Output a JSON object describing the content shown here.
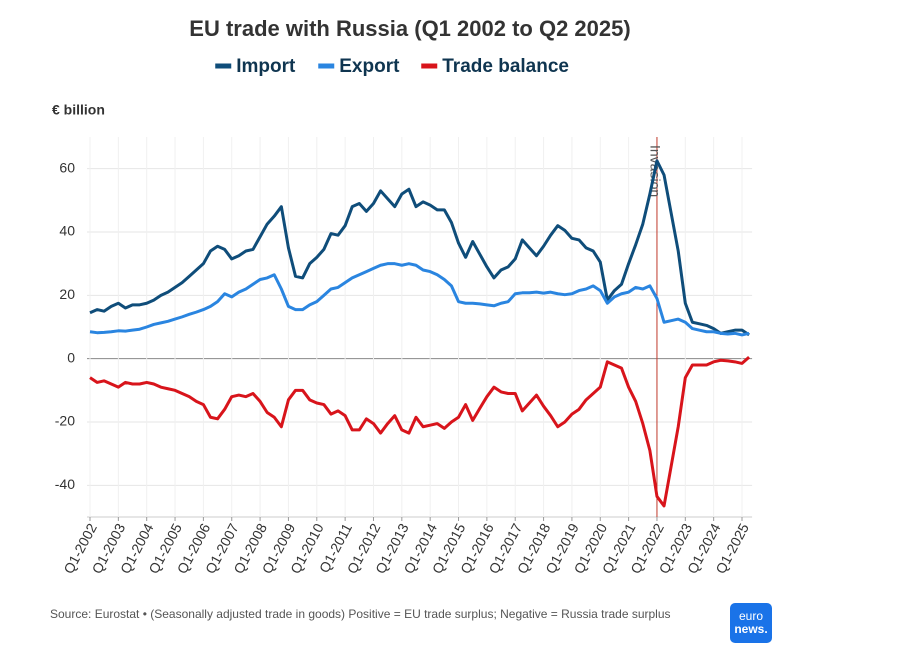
{
  "chart_data": {
    "type": "line",
    "title": "EU trade with Russia (Q1 2002 to Q2 2025)",
    "y_label": "€ billion",
    "source": "Source: Eurostat • (Seasonally adjusted trade in goods) Positive = EU trade surplus; Negative = Russia trade surplus",
    "logo": [
      "euro",
      "news."
    ],
    "annotation": {
      "text": "Invasion",
      "at": "Q1-2022",
      "color": "#c0392b"
    },
    "ylim": [
      -50,
      70
    ],
    "yticks": [
      -40,
      -20,
      0,
      20,
      40,
      60
    ],
    "grid": true,
    "legend": "top",
    "categories": [
      "Q1-2002",
      null,
      null,
      null,
      "Q1-2003",
      null,
      null,
      null,
      "Q1-2004",
      null,
      null,
      null,
      "Q1-2005",
      null,
      null,
      null,
      "Q1-2006",
      null,
      null,
      null,
      "Q1-2007",
      null,
      null,
      null,
      "Q1-2008",
      null,
      null,
      null,
      "Q1-2009",
      null,
      null,
      null,
      "Q1-2010",
      null,
      null,
      null,
      "Q1-2011",
      null,
      null,
      null,
      "Q1-2012",
      null,
      null,
      null,
      "Q1-2013",
      null,
      null,
      null,
      "Q1-2014",
      null,
      null,
      null,
      "Q1-2015",
      null,
      null,
      null,
      "Q1-2016",
      null,
      null,
      null,
      "Q1-2017",
      null,
      null,
      null,
      "Q1-2018",
      null,
      null,
      null,
      "Q1-2019",
      null,
      null,
      null,
      "Q1-2020",
      null,
      null,
      null,
      "Q1-2021",
      null,
      null,
      null,
      "Q1-2022",
      null,
      null,
      null,
      "Q1-2023",
      null,
      null,
      null,
      "Q1-2024",
      null,
      null,
      null,
      "Q1-2025",
      null
    ],
    "series": [
      {
        "name": "Import",
        "color": "#0f4d7a",
        "values": [
          14.5,
          15.5,
          15,
          16.5,
          17.5,
          16,
          17,
          17,
          17.5,
          18.5,
          20,
          21,
          22.5,
          24,
          26,
          28,
          30,
          34,
          35.5,
          34.5,
          31.5,
          32.5,
          34,
          34.5,
          38.5,
          42.5,
          45,
          48,
          35,
          26,
          25.5,
          30,
          32,
          34.5,
          39.5,
          39,
          42,
          48,
          49,
          46.5,
          49,
          53,
          50.5,
          48,
          52,
          53.5,
          48,
          49.5,
          48.5,
          47,
          47,
          43,
          36.5,
          32,
          37,
          33,
          29,
          25.5,
          28,
          29,
          31.5,
          37.5,
          35,
          32.5,
          35.5,
          39,
          42,
          40.5,
          38,
          37.5,
          35,
          34,
          30.5,
          18.5,
          21.5,
          23.5,
          30,
          36,
          42.5,
          52,
          62.5,
          58,
          46,
          34,
          17.5,
          11.5,
          11,
          10.5,
          9.5,
          8,
          8.5,
          9,
          9,
          7.5
        ]
      },
      {
        "name": "Export",
        "color": "#2a85e0",
        "values": [
          8.5,
          8.2,
          8.3,
          8.5,
          8.8,
          8.7,
          9,
          9.3,
          10,
          10.8,
          11.3,
          11.8,
          12.5,
          13.2,
          14,
          14.7,
          15.5,
          16.5,
          18,
          20.5,
          19.5,
          21,
          22,
          23.5,
          25,
          25.5,
          26.5,
          22,
          16.5,
          15.5,
          15.5,
          17,
          18,
          20,
          22,
          22.5,
          24,
          25.5,
          26.5,
          27.5,
          28.5,
          29.5,
          30,
          30,
          29.5,
          30,
          29.5,
          28,
          27.5,
          26.5,
          25,
          23,
          18,
          17.5,
          17.5,
          17.3,
          17,
          16.7,
          17.5,
          18,
          20.5,
          20.8,
          20.8,
          21,
          20.7,
          21,
          20.5,
          20.2,
          20.5,
          21.5,
          22,
          23,
          21.5,
          17.5,
          19.5,
          20.5,
          21,
          22.5,
          22,
          23,
          19,
          11.5,
          12,
          12.5,
          11.5,
          9.5,
          9,
          8.5,
          8.5,
          8,
          7.8,
          8,
          7.5,
          8
        ]
      },
      {
        "name": "Trade balance",
        "color": "#d8141b",
        "values": [
          -6,
          -7.5,
          -7,
          -8,
          -9,
          -7.5,
          -8,
          -8,
          -7.5,
          -8,
          -9,
          -9.5,
          -10,
          -11,
          -12,
          -13.5,
          -14.5,
          -18.5,
          -19,
          -16,
          -12,
          -11.5,
          -12,
          -11,
          -13.5,
          -17,
          -18.5,
          -21.5,
          -13,
          -10,
          -10,
          -13,
          -14,
          -14.5,
          -17.5,
          -16.5,
          -18,
          -22.5,
          -22.5,
          -19,
          -20.5,
          -23.5,
          -20.5,
          -18,
          -22.5,
          -23.5,
          -18.5,
          -21.5,
          -21,
          -20.5,
          -22,
          -20,
          -18.5,
          -14.5,
          -19.5,
          -15.7,
          -12,
          -9,
          -10.5,
          -11,
          -11,
          -16.5,
          -14,
          -11.5,
          -15,
          -18,
          -21.5,
          -20,
          -17.5,
          -16,
          -13,
          -11,
          -9,
          -1,
          -2,
          -3,
          -9,
          -13.5,
          -20.5,
          -29,
          -43.5,
          -46.5,
          -34,
          -21.5,
          -6,
          -2,
          -2,
          -2,
          -1,
          -0.5,
          -0.7,
          -1,
          -1.5,
          0.5
        ]
      }
    ]
  }
}
